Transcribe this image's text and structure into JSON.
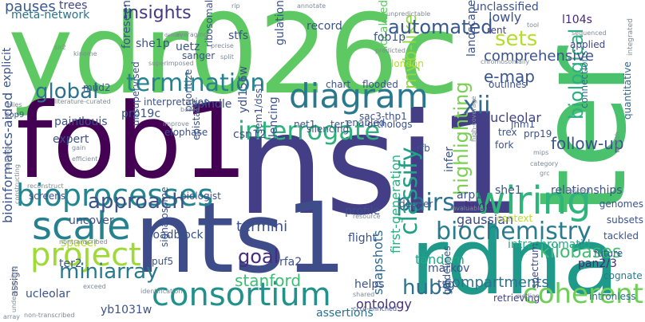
{
  "cloud": {
    "words": [
      {
        "text": "ydr026c",
        "color": "#5ec962"
      },
      {
        "text": "nsi1",
        "color": "#433e85"
      },
      {
        "text": "fob1",
        "color": "#440154"
      },
      {
        "text": "ter",
        "color": "#4ac16d"
      },
      {
        "text": "rdna",
        "color": "#1f9a8a"
      },
      {
        "text": "nts1",
        "color": "#3e4c8a"
      },
      {
        "text": "diagram",
        "color": "#2a788e"
      },
      {
        "text": "bioprocesses",
        "color": "#25858e"
      },
      {
        "text": "consortium",
        "color": "#21918c"
      },
      {
        "text": "wiring",
        "color": "#2fb47c"
      },
      {
        "text": "interrogate",
        "color": "#2db27d"
      },
      {
        "text": "termination",
        "color": "#26828e"
      },
      {
        "text": "scale",
        "color": "#26818e"
      },
      {
        "text": "project",
        "color": "#a0da39"
      },
      {
        "text": "biochemistry",
        "color": "#287c8e"
      },
      {
        "text": "coherent",
        "color": "#6ece58"
      },
      {
        "text": "approach",
        "color": "#3b528b"
      },
      {
        "text": "pairs",
        "color": "#2c728e"
      },
      {
        "text": "classify",
        "color": "#1fa187"
      },
      {
        "text": "highlighting",
        "color": "#7ad151"
      },
      {
        "text": "biological",
        "color": "#2ab07f"
      },
      {
        "text": "xii",
        "color": "#31688e"
      },
      {
        "text": "miniarray",
        "color": "#2a788e"
      },
      {
        "text": "myb-like",
        "color": "#8fd744"
      },
      {
        "text": "global",
        "color": "#2c728e"
      },
      {
        "text": "kilobases",
        "color": "#3fbc73"
      },
      {
        "text": "hubs",
        "color": "#2c728e"
      },
      {
        "text": "sets",
        "color": "#b5de2b"
      },
      {
        "text": "stanford",
        "color": "#3dbc74"
      },
      {
        "text": "goal",
        "color": "#472d7b"
      },
      {
        "text": "e-map",
        "color": "#39568c"
      },
      {
        "text": "nucleolar",
        "color": "#414487"
      },
      {
        "text": "follow-up",
        "color": "#3b528b"
      },
      {
        "text": "comprehensive",
        "color": "#3b528b"
      },
      {
        "text": "automated",
        "color": "#38598c"
      },
      {
        "text": "insights",
        "color": "#443983"
      },
      {
        "text": "termini",
        "color": "#3b528b"
      },
      {
        "text": "tandem",
        "color": "#22a785"
      },
      {
        "text": "compartments",
        "color": "#2c728e"
      },
      {
        "text": "gaussian",
        "color": "#3e4989"
      },
      {
        "text": "ontology",
        "color": "#46327e"
      },
      {
        "text": "snapshots",
        "color": "#31688e"
      },
      {
        "text": "first-generation",
        "color": "#29af7f"
      },
      {
        "text": "meta-network",
        "color": "#2c728e"
      },
      {
        "text": "pauses",
        "color": "#38598c"
      },
      {
        "text": "trees",
        "color": "#414487"
      },
      {
        "text": "lowly",
        "color": "#3b528b"
      },
      {
        "text": "unclassified",
        "color": "#3b528b"
      },
      {
        "text": "l104s",
        "color": "#482878"
      },
      {
        "text": "applied",
        "color": "#3f4788"
      },
      {
        "text": "rent",
        "color": "#433e85"
      },
      {
        "text": "tool",
        "color": "#7e8a96"
      },
      {
        "text": "sequenced",
        "color": "#7e8a96"
      },
      {
        "text": "integrated",
        "color": "#7e8a96"
      },
      {
        "text": "quantitative",
        "color": "#31688e"
      },
      {
        "text": "connections",
        "color": "#2c728e"
      },
      {
        "text": "relationships",
        "color": "#3b528b"
      },
      {
        "text": "genomes",
        "color": "#3b528b"
      },
      {
        "text": "subsets",
        "color": "#3b528b"
      },
      {
        "text": "tackled",
        "color": "#3b528b"
      },
      {
        "text": "future",
        "color": "#3b528b"
      },
      {
        "text": "pan2/3",
        "color": "#482878"
      },
      {
        "text": "cognate",
        "color": "#2a788e"
      },
      {
        "text": "intronless",
        "color": "#2c728e"
      },
      {
        "text": "retrieving",
        "color": "#414487"
      },
      {
        "text": "spectrum",
        "color": "#3e4989"
      },
      {
        "text": "median",
        "color": "#7e8a96"
      },
      {
        "text": "ccr4-enriched",
        "color": "#3b528b"
      },
      {
        "text": "shared",
        "color": "#7e8a96"
      },
      {
        "text": "assertions",
        "color": "#2c728e"
      },
      {
        "text": "helps",
        "color": "#3b528b"
      },
      {
        "text": "rfa2",
        "color": "#3b528b"
      },
      {
        "text": "markov",
        "color": "#3b528b"
      },
      {
        "text": "tsg",
        "color": "#3b528b"
      },
      {
        "text": "intrachromatid",
        "color": "#22a785"
      },
      {
        "text": "context",
        "color": "#b5de2b"
      },
      {
        "text": "arp1",
        "color": "#3b528b"
      },
      {
        "text": "huge",
        "color": "#472d7b"
      },
      {
        "text": "she1",
        "color": "#3b528b"
      },
      {
        "text": "infer",
        "color": "#3b528b"
      },
      {
        "text": "ter1",
        "color": "#3b528b"
      },
      {
        "text": "profile",
        "color": "#3b528b"
      },
      {
        "text": "resource",
        "color": "#7e8a96"
      },
      {
        "text": "enabled",
        "color": "#3b528b"
      },
      {
        "text": "orthologs",
        "color": "#3b528b"
      },
      {
        "text": "rfb",
        "color": "#3b528b"
      },
      {
        "text": "fork",
        "color": "#3b528b"
      },
      {
        "text": "trex",
        "color": "#3b528b"
      },
      {
        "text": "jnm1",
        "color": "#3b528b"
      },
      {
        "text": "prp19",
        "color": "#3b528b"
      },
      {
        "text": "mips",
        "color": "#7e8a96"
      },
      {
        "text": "category",
        "color": "#7e8a96"
      },
      {
        "text": "nascent",
        "color": "#7e8a96"
      },
      {
        "text": "grc",
        "color": "#7e8a96"
      },
      {
        "text": "wealth",
        "color": "#7e8a96"
      },
      {
        "text": "flight",
        "color": "#3b528b"
      },
      {
        "text": "silencing",
        "color": "#3b528b"
      },
      {
        "text": "sac3-thp1",
        "color": "#3b528b"
      },
      {
        "text": "net1",
        "color": "#3b528b"
      },
      {
        "text": "csn12",
        "color": "#3b528b"
      },
      {
        "text": "flooded",
        "color": "#3b528b"
      },
      {
        "text": "chart",
        "color": "#3b528b"
      },
      {
        "text": "unlocalized",
        "color": "#5ec962"
      },
      {
        "text": "london",
        "color": "#b5de2b"
      },
      {
        "text": "outlines",
        "color": "#3b528b"
      },
      {
        "text": "fob1p",
        "color": "#3b528b"
      },
      {
        "text": "landscape",
        "color": "#3b528b"
      },
      {
        "text": "record",
        "color": "#3b528b"
      },
      {
        "text": "gulation",
        "color": "#3b528b"
      },
      {
        "text": "stfs",
        "color": "#3b528b"
      },
      {
        "text": "ribosomal",
        "color": "#3b528b"
      },
      {
        "text": "uetz",
        "color": "#3b528b"
      },
      {
        "text": "sanger",
        "color": "#3b528b"
      },
      {
        "text": "she1p",
        "color": "#3b528b"
      },
      {
        "text": "foreseen",
        "color": "#3b528b"
      },
      {
        "text": "interpretation",
        "color": "#3b528b"
      },
      {
        "text": "spindle",
        "color": "#3b528b"
      },
      {
        "text": "prp19c",
        "color": "#3b528b"
      },
      {
        "text": "louis",
        "color": "#3b528b"
      },
      {
        "text": "paint",
        "color": "#3b528b"
      },
      {
        "text": "expert",
        "color": "#3b528b"
      },
      {
        "text": "elophase",
        "color": "#3b528b"
      },
      {
        "text": "prioritize",
        "color": "#3b528b"
      },
      {
        "text": "ydl156w",
        "color": "#3b528b"
      },
      {
        "text": "epistatic",
        "color": "#3b528b"
      },
      {
        "text": "unsupervised",
        "color": "#3b528b"
      },
      {
        "text": "uncover",
        "color": "#3b528b"
      },
      {
        "text": "spacer",
        "color": "#b5de2b"
      },
      {
        "text": "ter2",
        "color": "#3b528b"
      },
      {
        "text": "screens",
        "color": "#3b528b"
      },
      {
        "text": "biologist",
        "color": "#3b528b"
      },
      {
        "text": "roadblock",
        "color": "#3b528b"
      },
      {
        "text": "signalosome",
        "color": "#3b528b"
      },
      {
        "text": "puf5",
        "color": "#3b528b"
      },
      {
        "text": "ucleolar",
        "color": "#3b528b"
      },
      {
        "text": "ilencing",
        "color": "#3b528b"
      },
      {
        "text": "sem1/dss1",
        "color": "#3b528b"
      },
      {
        "text": "bioinformatics-aided",
        "color": "#3b528b"
      },
      {
        "text": "explicit",
        "color": "#3b528b"
      },
      {
        "text": "assign",
        "color": "#3b528b"
      },
      {
        "text": "yb1031w",
        "color": "#3b528b"
      },
      {
        "text": "constructing",
        "color": "#7e8a96"
      },
      {
        "text": "mud2",
        "color": "#3b528b"
      },
      {
        "text": "cop9",
        "color": "#3b528b"
      },
      {
        "text": "relies",
        "color": "#7e8a96"
      },
      {
        "text": "kinome",
        "color": "#7e8a96"
      },
      {
        "text": "sir2",
        "color": "#7e8a96"
      },
      {
        "text": "literature-curated",
        "color": "#7e8a96"
      },
      {
        "text": "superimposed",
        "color": "#7e8a96"
      },
      {
        "text": "averaging",
        "color": "#7e8a96"
      },
      {
        "text": "precise",
        "color": "#7e8a96"
      },
      {
        "text": "split",
        "color": "#7e8a96"
      },
      {
        "text": "densely",
        "color": "#7e8a96"
      },
      {
        "text": "rip",
        "color": "#7e8a96"
      },
      {
        "text": "annotate",
        "color": "#7e8a96"
      },
      {
        "text": "unpredictable",
        "color": "#7e8a96"
      },
      {
        "text": "predicted",
        "color": "#7e8a96"
      },
      {
        "text": "chromosomally",
        "color": "#7e8a96"
      },
      {
        "text": "high-coverage",
        "color": "#7e8a96"
      },
      {
        "text": "improve",
        "color": "#7e8a96"
      },
      {
        "text": "based",
        "color": "#7e8a96"
      },
      {
        "text": "efficient",
        "color": "#7e8a96"
      },
      {
        "text": "challenge",
        "color": "#7e8a96"
      },
      {
        "text": "gain",
        "color": "#7e8a96"
      },
      {
        "text": "reconstruct",
        "color": "#7e8a96"
      },
      {
        "text": "nontranscribed",
        "color": "#7e8a96"
      },
      {
        "text": "deeper",
        "color": "#3b528b"
      },
      {
        "text": "invaluable",
        "color": "#7e8a96"
      },
      {
        "text": "understanding",
        "color": "#7e8a96"
      },
      {
        "text": "identification",
        "color": "#7e8a96"
      },
      {
        "text": "exceed",
        "color": "#7e8a96"
      },
      {
        "text": "non-transcribed",
        "color": "#7e8a96"
      },
      {
        "text": "array",
        "color": "#7e8a96"
      },
      {
        "text": "guidelines",
        "color": "#3b528b"
      }
    ]
  }
}
